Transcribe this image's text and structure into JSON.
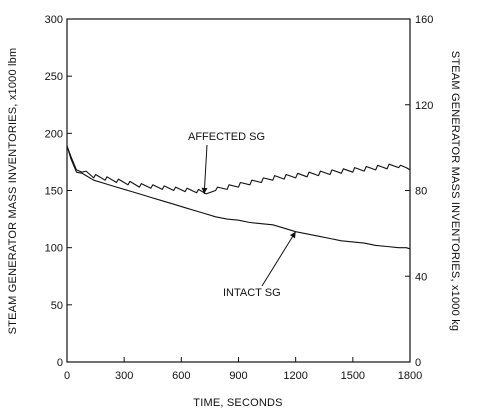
{
  "chart_data": {
    "type": "line",
    "title": "",
    "xlabel": "TIME, SECONDS",
    "ylabel_left": "STEAM GENERATOR MASS INVENTORIES, x1000 lbm",
    "ylabel_right": "STEAM GENERATOR MASS INVENTORIES, x1000 kg",
    "xlim": [
      0,
      1800
    ],
    "ylim_left": [
      0,
      300
    ],
    "ylim_right": [
      0,
      160
    ],
    "x_ticks": [
      "0",
      "300",
      "600",
      "900",
      "1200",
      "1500",
      "1800"
    ],
    "y_ticks_left": [
      "0",
      "50",
      "100",
      "150",
      "200",
      "250",
      "300"
    ],
    "y_ticks_right": [
      "0",
      "40",
      "80",
      "120",
      "160"
    ],
    "grid": false,
    "legend": "none",
    "series": [
      {
        "name": "AFFECTED SG",
        "x": [
          0,
          20,
          50,
          80,
          100,
          140,
          150,
          200,
          210,
          260,
          270,
          320,
          330,
          380,
          390,
          440,
          450,
          500,
          510,
          560,
          570,
          620,
          630,
          680,
          690,
          720,
          730,
          780,
          790,
          840,
          850,
          900,
          910,
          960,
          970,
          1020,
          1030,
          1080,
          1090,
          1140,
          1150,
          1200,
          1210,
          1260,
          1270,
          1320,
          1330,
          1380,
          1390,
          1440,
          1450,
          1500,
          1510,
          1560,
          1570,
          1620,
          1630,
          1680,
          1690,
          1740,
          1750,
          1780,
          1800
        ],
        "values": [
          189,
          180,
          168,
          166,
          167,
          161,
          164,
          159,
          162,
          157,
          160,
          155,
          158,
          153,
          156,
          152,
          155,
          151,
          154,
          150,
          153,
          149,
          152,
          148,
          151,
          148,
          147,
          150,
          153,
          151,
          155,
          153,
          157,
          155,
          159,
          157,
          161,
          159,
          163,
          160,
          164,
          161,
          165,
          162,
          166,
          163,
          167,
          164,
          168,
          165,
          169,
          166,
          170,
          167,
          171,
          168,
          172,
          169,
          173,
          170,
          172,
          170,
          168
        ]
      },
      {
        "name": "INTACT SG",
        "x": [
          0,
          20,
          50,
          80,
          100,
          140,
          200,
          260,
          320,
          380,
          440,
          500,
          560,
          620,
          680,
          720,
          780,
          840,
          900,
          960,
          1020,
          1080,
          1140,
          1200,
          1260,
          1320,
          1380,
          1440,
          1500,
          1560,
          1620,
          1680,
          1740,
          1780,
          1800
        ],
        "values": [
          189,
          178,
          166,
          165,
          163,
          159,
          156,
          153,
          150,
          147,
          144,
          141,
          138,
          135,
          132,
          130,
          127,
          125,
          124,
          122,
          121,
          120,
          117,
          114,
          112,
          110,
          108,
          106,
          105,
          104,
          102,
          101,
          100,
          100,
          99
        ]
      }
    ],
    "annotations": [
      {
        "text": "AFFECTED SG",
        "points_to_x": 720,
        "points_to_y": 147
      },
      {
        "text": "INTACT SG",
        "points_to_x": 1200,
        "points_to_y": 114
      }
    ]
  }
}
